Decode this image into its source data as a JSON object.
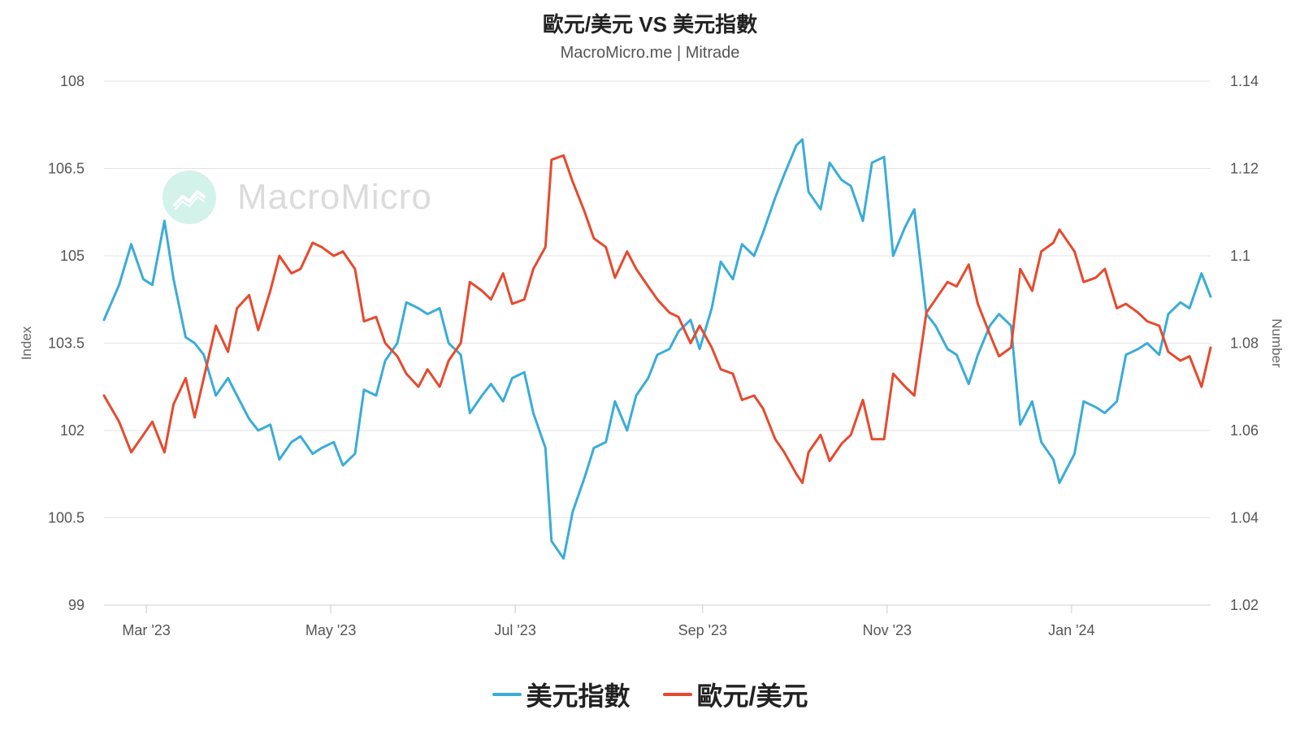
{
  "header": {
    "title": "歐元/美元 VS 美元指數",
    "subtitle": "MacroMicro.me | Mitrade"
  },
  "watermark": {
    "text": "MacroMicro",
    "icon": "macromicro-logo-icon"
  },
  "legend": [
    {
      "label": "美元指數",
      "color": "#3aacd8"
    },
    {
      "label": "歐元/美元",
      "color": "#e64a2e"
    }
  ],
  "chart_data": {
    "type": "line",
    "title": "歐元/美元 VS 美元指數",
    "subtitle": "MacroMicro.me | Mitrade",
    "x_range": [
      "2023-02-15",
      "2024-02-16"
    ],
    "x_ticks": [
      {
        "date": "2023-03-01",
        "label": "Mar '23"
      },
      {
        "date": "2023-05-01",
        "label": "May '23"
      },
      {
        "date": "2023-07-01",
        "label": "Jul '23"
      },
      {
        "date": "2023-09-01",
        "label": "Sep '23"
      },
      {
        "date": "2023-11-01",
        "label": "Nov '23"
      },
      {
        "date": "2024-01-01",
        "label": "Jan '24"
      }
    ],
    "y_left": {
      "label": "Index",
      "range": [
        99,
        108
      ],
      "ticks": [
        "99",
        "100.5",
        "102",
        "103.5",
        "105",
        "106.5",
        "108"
      ]
    },
    "y_right": {
      "label": "Number",
      "range": [
        1.02,
        1.14
      ],
      "ticks": [
        "1.02",
        "1.04",
        "1.06",
        "1.08",
        "1.1",
        "1.12",
        "1.14"
      ]
    },
    "grid": true,
    "legend_position": "bottom-center",
    "series": [
      {
        "name": "美元指數",
        "axis": "left",
        "color": "#3aacd8",
        "points": [
          [
            "2023-02-15",
            103.9
          ],
          [
            "2023-02-20",
            104.5
          ],
          [
            "2023-02-24",
            105.2
          ],
          [
            "2023-02-28",
            104.6
          ],
          [
            "2023-03-03",
            104.5
          ],
          [
            "2023-03-07",
            105.6
          ],
          [
            "2023-03-10",
            104.6
          ],
          [
            "2023-03-14",
            103.6
          ],
          [
            "2023-03-17",
            103.5
          ],
          [
            "2023-03-20",
            103.3
          ],
          [
            "2023-03-24",
            102.6
          ],
          [
            "2023-03-28",
            102.9
          ],
          [
            "2023-03-31",
            102.6
          ],
          [
            "2023-04-04",
            102.2
          ],
          [
            "2023-04-07",
            102.0
          ],
          [
            "2023-04-11",
            102.1
          ],
          [
            "2023-04-14",
            101.5
          ],
          [
            "2023-04-18",
            101.8
          ],
          [
            "2023-04-21",
            101.9
          ],
          [
            "2023-04-25",
            101.6
          ],
          [
            "2023-04-28",
            101.7
          ],
          [
            "2023-05-02",
            101.8
          ],
          [
            "2023-05-05",
            101.4
          ],
          [
            "2023-05-09",
            101.6
          ],
          [
            "2023-05-12",
            102.7
          ],
          [
            "2023-05-16",
            102.6
          ],
          [
            "2023-05-19",
            103.2
          ],
          [
            "2023-05-23",
            103.5
          ],
          [
            "2023-05-26",
            104.2
          ],
          [
            "2023-05-30",
            104.1
          ],
          [
            "2023-06-02",
            104.0
          ],
          [
            "2023-06-06",
            104.1
          ],
          [
            "2023-06-09",
            103.5
          ],
          [
            "2023-06-13",
            103.3
          ],
          [
            "2023-06-16",
            102.3
          ],
          [
            "2023-06-20",
            102.6
          ],
          [
            "2023-06-23",
            102.8
          ],
          [
            "2023-06-27",
            102.5
          ],
          [
            "2023-06-30",
            102.9
          ],
          [
            "2023-07-04",
            103.0
          ],
          [
            "2023-07-07",
            102.3
          ],
          [
            "2023-07-11",
            101.7
          ],
          [
            "2023-07-13",
            100.1
          ],
          [
            "2023-07-17",
            99.8
          ],
          [
            "2023-07-20",
            100.6
          ],
          [
            "2023-07-24",
            101.2
          ],
          [
            "2023-07-27",
            101.7
          ],
          [
            "2023-07-31",
            101.8
          ],
          [
            "2023-08-03",
            102.5
          ],
          [
            "2023-08-07",
            102.0
          ],
          [
            "2023-08-10",
            102.6
          ],
          [
            "2023-08-14",
            102.9
          ],
          [
            "2023-08-17",
            103.3
          ],
          [
            "2023-08-21",
            103.4
          ],
          [
            "2023-08-24",
            103.7
          ],
          [
            "2023-08-28",
            103.9
          ],
          [
            "2023-08-31",
            103.4
          ],
          [
            "2023-09-04",
            104.1
          ],
          [
            "2023-09-07",
            104.9
          ],
          [
            "2023-09-11",
            104.6
          ],
          [
            "2023-09-14",
            105.2
          ],
          [
            "2023-09-18",
            105.0
          ],
          [
            "2023-09-21",
            105.4
          ],
          [
            "2023-09-25",
            106.0
          ],
          [
            "2023-09-28",
            106.4
          ],
          [
            "2023-10-02",
            106.9
          ],
          [
            "2023-10-04",
            107.0
          ],
          [
            "2023-10-06",
            106.1
          ],
          [
            "2023-10-10",
            105.8
          ],
          [
            "2023-10-13",
            106.6
          ],
          [
            "2023-10-17",
            106.3
          ],
          [
            "2023-10-20",
            106.2
          ],
          [
            "2023-10-24",
            105.6
          ],
          [
            "2023-10-27",
            106.6
          ],
          [
            "2023-10-31",
            106.7
          ],
          [
            "2023-11-03",
            105.0
          ],
          [
            "2023-11-07",
            105.5
          ],
          [
            "2023-11-10",
            105.8
          ],
          [
            "2023-11-14",
            104.0
          ],
          [
            "2023-11-17",
            103.8
          ],
          [
            "2023-11-21",
            103.4
          ],
          [
            "2023-11-24",
            103.3
          ],
          [
            "2023-11-28",
            102.8
          ],
          [
            "2023-12-01",
            103.3
          ],
          [
            "2023-12-05",
            103.8
          ],
          [
            "2023-12-08",
            104.0
          ],
          [
            "2023-12-12",
            103.8
          ],
          [
            "2023-12-15",
            102.1
          ],
          [
            "2023-12-19",
            102.5
          ],
          [
            "2023-12-22",
            101.8
          ],
          [
            "2023-12-26",
            101.5
          ],
          [
            "2023-12-28",
            101.1
          ],
          [
            "2024-01-02",
            101.6
          ],
          [
            "2024-01-05",
            102.5
          ],
          [
            "2024-01-09",
            102.4
          ],
          [
            "2024-01-12",
            102.3
          ],
          [
            "2024-01-16",
            102.5
          ],
          [
            "2024-01-19",
            103.3
          ],
          [
            "2024-01-23",
            103.4
          ],
          [
            "2024-01-26",
            103.5
          ],
          [
            "2024-01-30",
            103.3
          ],
          [
            "2024-02-02",
            104.0
          ],
          [
            "2024-02-06",
            104.2
          ],
          [
            "2024-02-09",
            104.1
          ],
          [
            "2024-02-13",
            104.7
          ],
          [
            "2024-02-16",
            104.3
          ]
        ]
      },
      {
        "name": "歐元/美元",
        "axis": "right",
        "color": "#e64a2e",
        "points": [
          [
            "2023-02-15",
            1.068
          ],
          [
            "2023-02-20",
            1.062
          ],
          [
            "2023-02-24",
            1.055
          ],
          [
            "2023-02-28",
            1.059
          ],
          [
            "2023-03-03",
            1.062
          ],
          [
            "2023-03-07",
            1.055
          ],
          [
            "2023-03-10",
            1.066
          ],
          [
            "2023-03-14",
            1.072
          ],
          [
            "2023-03-17",
            1.063
          ],
          [
            "2023-03-20",
            1.072
          ],
          [
            "2023-03-24",
            1.084
          ],
          [
            "2023-03-28",
            1.078
          ],
          [
            "2023-03-31",
            1.088
          ],
          [
            "2023-04-04",
            1.091
          ],
          [
            "2023-04-07",
            1.083
          ],
          [
            "2023-04-11",
            1.092
          ],
          [
            "2023-04-14",
            1.1
          ],
          [
            "2023-04-18",
            1.096
          ],
          [
            "2023-04-21",
            1.097
          ],
          [
            "2023-04-25",
            1.103
          ],
          [
            "2023-04-28",
            1.102
          ],
          [
            "2023-05-02",
            1.1
          ],
          [
            "2023-05-05",
            1.101
          ],
          [
            "2023-05-09",
            1.097
          ],
          [
            "2023-05-12",
            1.085
          ],
          [
            "2023-05-16",
            1.086
          ],
          [
            "2023-05-19",
            1.08
          ],
          [
            "2023-05-23",
            1.077
          ],
          [
            "2023-05-26",
            1.073
          ],
          [
            "2023-05-30",
            1.07
          ],
          [
            "2023-06-02",
            1.074
          ],
          [
            "2023-06-06",
            1.07
          ],
          [
            "2023-06-09",
            1.076
          ],
          [
            "2023-06-13",
            1.08
          ],
          [
            "2023-06-16",
            1.094
          ],
          [
            "2023-06-20",
            1.092
          ],
          [
            "2023-06-23",
            1.09
          ],
          [
            "2023-06-27",
            1.096
          ],
          [
            "2023-06-30",
            1.089
          ],
          [
            "2023-07-04",
            1.09
          ],
          [
            "2023-07-07",
            1.097
          ],
          [
            "2023-07-11",
            1.102
          ],
          [
            "2023-07-13",
            1.122
          ],
          [
            "2023-07-17",
            1.123
          ],
          [
            "2023-07-20",
            1.117
          ],
          [
            "2023-07-24",
            1.11
          ],
          [
            "2023-07-27",
            1.104
          ],
          [
            "2023-07-31",
            1.102
          ],
          [
            "2023-08-03",
            1.095
          ],
          [
            "2023-08-07",
            1.101
          ],
          [
            "2023-08-10",
            1.097
          ],
          [
            "2023-08-14",
            1.093
          ],
          [
            "2023-08-17",
            1.09
          ],
          [
            "2023-08-21",
            1.087
          ],
          [
            "2023-08-24",
            1.086
          ],
          [
            "2023-08-28",
            1.08
          ],
          [
            "2023-08-31",
            1.084
          ],
          [
            "2023-09-04",
            1.079
          ],
          [
            "2023-09-07",
            1.074
          ],
          [
            "2023-09-11",
            1.073
          ],
          [
            "2023-09-14",
            1.067
          ],
          [
            "2023-09-18",
            1.068
          ],
          [
            "2023-09-21",
            1.065
          ],
          [
            "2023-09-25",
            1.058
          ],
          [
            "2023-09-28",
            1.055
          ],
          [
            "2023-10-02",
            1.05
          ],
          [
            "2023-10-04",
            1.048
          ],
          [
            "2023-10-06",
            1.055
          ],
          [
            "2023-10-10",
            1.059
          ],
          [
            "2023-10-13",
            1.053
          ],
          [
            "2023-10-17",
            1.057
          ],
          [
            "2023-10-20",
            1.059
          ],
          [
            "2023-10-24",
            1.067
          ],
          [
            "2023-10-27",
            1.058
          ],
          [
            "2023-10-31",
            1.058
          ],
          [
            "2023-11-03",
            1.073
          ],
          [
            "2023-11-07",
            1.07
          ],
          [
            "2023-11-10",
            1.068
          ],
          [
            "2023-11-14",
            1.087
          ],
          [
            "2023-11-17",
            1.09
          ],
          [
            "2023-11-21",
            1.094
          ],
          [
            "2023-11-24",
            1.093
          ],
          [
            "2023-11-28",
            1.098
          ],
          [
            "2023-12-01",
            1.089
          ],
          [
            "2023-12-05",
            1.082
          ],
          [
            "2023-12-08",
            1.077
          ],
          [
            "2023-12-12",
            1.079
          ],
          [
            "2023-12-15",
            1.097
          ],
          [
            "2023-12-19",
            1.092
          ],
          [
            "2023-12-22",
            1.101
          ],
          [
            "2023-12-26",
            1.103
          ],
          [
            "2023-12-28",
            1.106
          ],
          [
            "2024-01-02",
            1.101
          ],
          [
            "2024-01-05",
            1.094
          ],
          [
            "2024-01-09",
            1.095
          ],
          [
            "2024-01-12",
            1.097
          ],
          [
            "2024-01-16",
            1.088
          ],
          [
            "2024-01-19",
            1.089
          ],
          [
            "2024-01-23",
            1.087
          ],
          [
            "2024-01-26",
            1.085
          ],
          [
            "2024-01-30",
            1.084
          ],
          [
            "2024-02-02",
            1.078
          ],
          [
            "2024-02-06",
            1.076
          ],
          [
            "2024-02-09",
            1.077
          ],
          [
            "2024-02-13",
            1.07
          ],
          [
            "2024-02-16",
            1.079
          ]
        ]
      }
    ]
  }
}
